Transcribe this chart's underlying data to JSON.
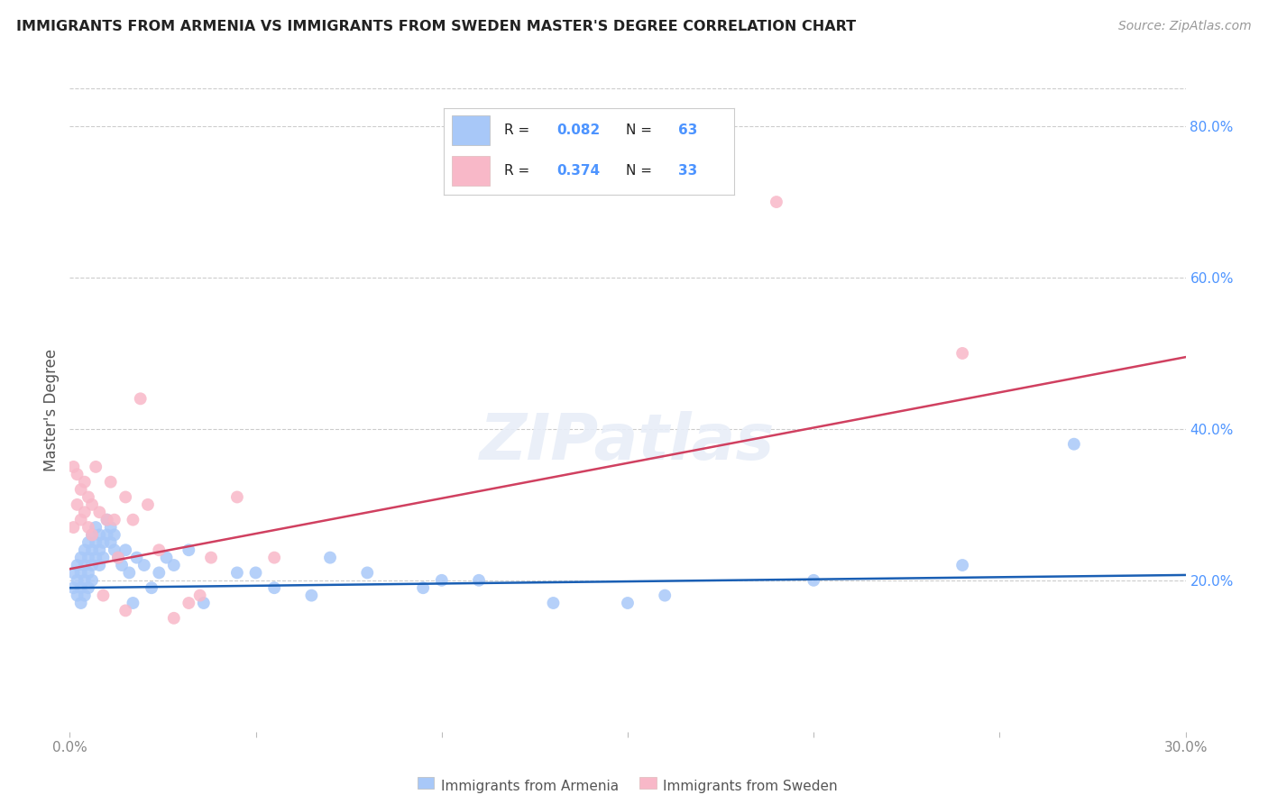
{
  "title": "IMMIGRANTS FROM ARMENIA VS IMMIGRANTS FROM SWEDEN MASTER'S DEGREE CORRELATION CHART",
  "source": "Source: ZipAtlas.com",
  "ylabel": "Master's Degree",
  "xlim": [
    0.0,
    0.3
  ],
  "ylim": [
    0.0,
    0.85
  ],
  "x_ticks": [
    0.0,
    0.05,
    0.1,
    0.15,
    0.2,
    0.25,
    0.3
  ],
  "x_tick_labels": [
    "0.0%",
    "",
    "",
    "",
    "",
    "",
    "30.0%"
  ],
  "y_ticks_right": [
    0.2,
    0.4,
    0.6,
    0.8
  ],
  "y_tick_labels_right": [
    "20.0%",
    "40.0%",
    "60.0%",
    "80.0%"
  ],
  "background_color": "#ffffff",
  "grid_color": "#cccccc",
  "title_color": "#222222",
  "right_axis_color": "#4d94ff",
  "R1": "0.082",
  "N1": "63",
  "R2": "0.374",
  "N2": "33",
  "armenia_color": "#a8c8f8",
  "sweden_color": "#f8b8c8",
  "armenia_line_color": "#1a5fb4",
  "sweden_line_color": "#d04060",
  "legend_text_color": "#222222",
  "legend_value_color": "#4d94ff",
  "armenia_x": [
    0.001,
    0.001,
    0.002,
    0.002,
    0.002,
    0.003,
    0.003,
    0.003,
    0.003,
    0.004,
    0.004,
    0.004,
    0.004,
    0.005,
    0.005,
    0.005,
    0.005,
    0.006,
    0.006,
    0.006,
    0.006,
    0.007,
    0.007,
    0.007,
    0.008,
    0.008,
    0.008,
    0.009,
    0.009,
    0.01,
    0.01,
    0.011,
    0.011,
    0.012,
    0.012,
    0.013,
    0.014,
    0.015,
    0.016,
    0.017,
    0.018,
    0.02,
    0.022,
    0.024,
    0.026,
    0.028,
    0.032,
    0.036,
    0.045,
    0.055,
    0.065,
    0.08,
    0.095,
    0.11,
    0.13,
    0.16,
    0.2,
    0.24,
    0.27,
    0.05,
    0.07,
    0.1,
    0.15
  ],
  "armenia_y": [
    0.21,
    0.19,
    0.22,
    0.2,
    0.18,
    0.23,
    0.21,
    0.19,
    0.17,
    0.24,
    0.22,
    0.2,
    0.18,
    0.25,
    0.23,
    0.21,
    0.19,
    0.26,
    0.24,
    0.22,
    0.2,
    0.27,
    0.25,
    0.23,
    0.26,
    0.24,
    0.22,
    0.25,
    0.23,
    0.28,
    0.26,
    0.27,
    0.25,
    0.26,
    0.24,
    0.23,
    0.22,
    0.24,
    0.21,
    0.17,
    0.23,
    0.22,
    0.19,
    0.21,
    0.23,
    0.22,
    0.24,
    0.17,
    0.21,
    0.19,
    0.18,
    0.21,
    0.19,
    0.2,
    0.17,
    0.18,
    0.2,
    0.22,
    0.38,
    0.21,
    0.23,
    0.2,
    0.17
  ],
  "sweden_x": [
    0.001,
    0.001,
    0.002,
    0.002,
    0.003,
    0.003,
    0.004,
    0.004,
    0.005,
    0.005,
    0.006,
    0.006,
    0.007,
    0.008,
    0.009,
    0.01,
    0.011,
    0.012,
    0.013,
    0.015,
    0.017,
    0.019,
    0.021,
    0.024,
    0.028,
    0.032,
    0.038,
    0.045,
    0.055,
    0.035,
    0.015,
    0.19,
    0.24
  ],
  "sweden_y": [
    0.35,
    0.27,
    0.34,
    0.3,
    0.32,
    0.28,
    0.33,
    0.29,
    0.31,
    0.27,
    0.3,
    0.26,
    0.35,
    0.29,
    0.18,
    0.28,
    0.33,
    0.28,
    0.23,
    0.31,
    0.28,
    0.44,
    0.3,
    0.24,
    0.15,
    0.17,
    0.23,
    0.31,
    0.23,
    0.18,
    0.16,
    0.7,
    0.5
  ],
  "armenia_trend_x": [
    0.0,
    0.3
  ],
  "armenia_trend_y": [
    0.19,
    0.207
  ],
  "sweden_trend_x": [
    0.0,
    0.3
  ],
  "sweden_trend_y": [
    0.215,
    0.495
  ]
}
